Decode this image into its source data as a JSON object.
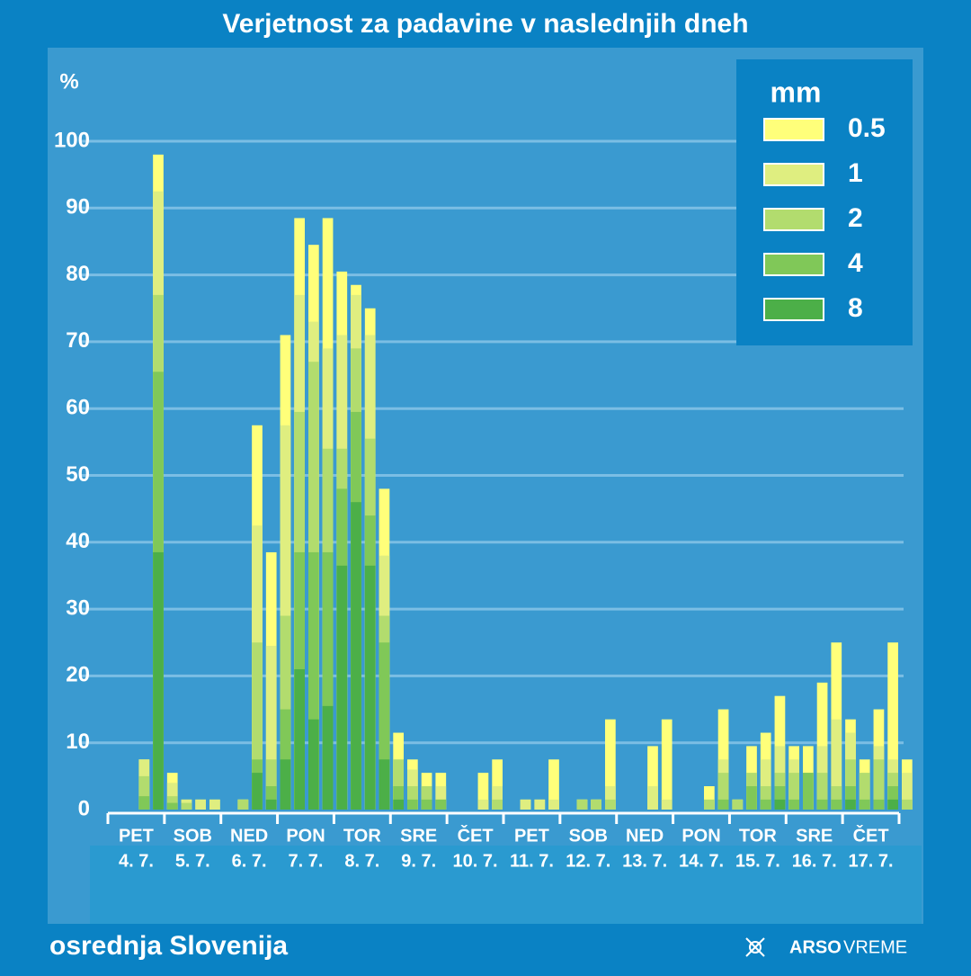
{
  "chart_data": {
    "type": "bar",
    "overlap": true,
    "title": "Verjetnost za padavine v naslednjih dneh",
    "y_label": "%",
    "legend_title": "mm",
    "ylim": [
      0,
      100
    ],
    "yticks": [
      0,
      10,
      20,
      30,
      40,
      50,
      60,
      70,
      80,
      90,
      100
    ],
    "grid": true,
    "legend": "top-right",
    "categories": [
      null,
      null,
      null,
      null,
      null,
      null,
      null,
      null,
      null,
      null,
      null,
      null,
      null,
      null,
      null,
      null,
      null,
      null,
      null,
      null,
      null,
      null,
      null,
      null,
      null,
      null,
      null,
      null,
      null,
      null,
      null,
      null,
      null,
      null,
      null,
      null,
      null,
      null,
      null,
      null,
      null,
      null,
      null,
      null,
      null,
      null,
      null,
      null,
      null,
      null,
      null,
      null,
      null,
      null,
      null,
      null,
      null
    ],
    "day_labels": [
      {
        "day": "PET",
        "date": "4. 7."
      },
      {
        "day": "SOB",
        "date": "5. 7."
      },
      {
        "day": "NED",
        "date": "6. 7."
      },
      {
        "day": "PON",
        "date": "7. 7."
      },
      {
        "day": "TOR",
        "date": "8. 7."
      },
      {
        "day": "SRE",
        "date": "9. 7."
      },
      {
        "day": "ČET",
        "date": "10. 7."
      },
      {
        "day": "PET",
        "date": "11. 7."
      },
      {
        "day": "SOB",
        "date": "12. 7."
      },
      {
        "day": "NED",
        "date": "13. 7."
      },
      {
        "day": "PON",
        "date": "14. 7."
      },
      {
        "day": "TOR",
        "date": "15. 7."
      },
      {
        "day": "SRE",
        "date": "16. 7."
      },
      {
        "day": "ČET",
        "date": "17. 7."
      }
    ],
    "series": [
      {
        "name": "0.5",
        "color": "#ffff7a",
        "values": [
          0,
          0,
          7.5,
          98,
          5.5,
          1.5,
          1.5,
          1.5,
          0,
          1.5,
          57.5,
          38.5,
          71,
          88.5,
          84.5,
          88.5,
          80.5,
          78.5,
          75,
          48,
          11.5,
          7.5,
          5.5,
          5.5,
          0,
          0,
          5.5,
          7.5,
          0,
          1.5,
          1.5,
          7.5,
          0,
          1.5,
          1.5,
          13.5,
          0,
          0,
          9.5,
          13.5,
          0,
          0,
          3.5,
          15,
          1.5,
          9.5,
          11.5,
          17,
          9.5,
          9.5,
          19,
          25,
          13.5,
          7.5,
          15,
          25,
          7.5
        ]
      },
      {
        "name": "1",
        "color": "#dfee80",
        "values": [
          0,
          0,
          7.5,
          92.5,
          4,
          1.5,
          1.5,
          1.5,
          0,
          1.5,
          42.5,
          24.5,
          57.5,
          77,
          73,
          69,
          71,
          77,
          71,
          38,
          7.5,
          6,
          3.5,
          3.5,
          0,
          0,
          1.5,
          3.5,
          0,
          1.5,
          1.5,
          1.5,
          0,
          1.5,
          1.5,
          3.5,
          0,
          0,
          3.5,
          1.5,
          0,
          0,
          1.5,
          7.5,
          1.5,
          5.5,
          7.5,
          9.5,
          7.5,
          5.5,
          9.5,
          13.5,
          11.5,
          5.5,
          9.5,
          7.5,
          5.5
        ]
      },
      {
        "name": "2",
        "color": "#b2dc6e",
        "values": [
          0,
          0,
          5,
          77,
          2,
          1,
          0,
          0,
          0,
          1.5,
          25,
          7.5,
          29,
          59.5,
          67,
          54,
          54,
          69,
          55.5,
          29,
          7.5,
          3.5,
          3.5,
          1.5,
          0,
          0,
          0,
          1.5,
          0,
          0,
          0,
          0,
          0,
          1.5,
          1.5,
          1.5,
          0,
          0,
          0,
          0,
          0,
          0,
          1.5,
          5.5,
          1.5,
          5.5,
          3.5,
          5.5,
          5.5,
          5.5,
          5.5,
          3.5,
          7.5,
          5.5,
          7.5,
          5.5,
          1.5
        ]
      },
      {
        "name": "4",
        "color": "#80c858",
        "values": [
          0,
          0,
          2,
          65.5,
          1,
          0,
          0,
          0,
          0,
          0,
          7.5,
          3.5,
          15,
          38.5,
          38.5,
          38.5,
          48,
          59.5,
          44,
          25,
          3.5,
          1.5,
          1.5,
          1.5,
          0,
          0,
          0,
          0,
          0,
          0,
          0,
          0,
          0,
          0,
          0,
          0,
          0,
          0,
          0,
          0,
          0,
          0,
          0,
          1.5,
          0,
          3.5,
          1.5,
          3.5,
          1.5,
          5.5,
          1.5,
          1.5,
          3.5,
          1.5,
          1.5,
          3.5,
          0
        ]
      },
      {
        "name": "8",
        "color": "#4caf48",
        "values": [
          0,
          0,
          0,
          38.5,
          0,
          0,
          0,
          0,
          0,
          0,
          5.5,
          1.5,
          7.5,
          21,
          13.5,
          15.5,
          36.5,
          46,
          36.5,
          7.5,
          1.5,
          0,
          0,
          0,
          0,
          0,
          0,
          0,
          0,
          0,
          0,
          0,
          0,
          0,
          0,
          0,
          0,
          0,
          0,
          0,
          0,
          0,
          0,
          0,
          0,
          0,
          0,
          1.5,
          0,
          0,
          0,
          0,
          1.5,
          0,
          0,
          1.5,
          0
        ]
      }
    ]
  },
  "region": "osrednja Slovenija",
  "brand": [
    "ARSO",
    "VREME"
  ]
}
